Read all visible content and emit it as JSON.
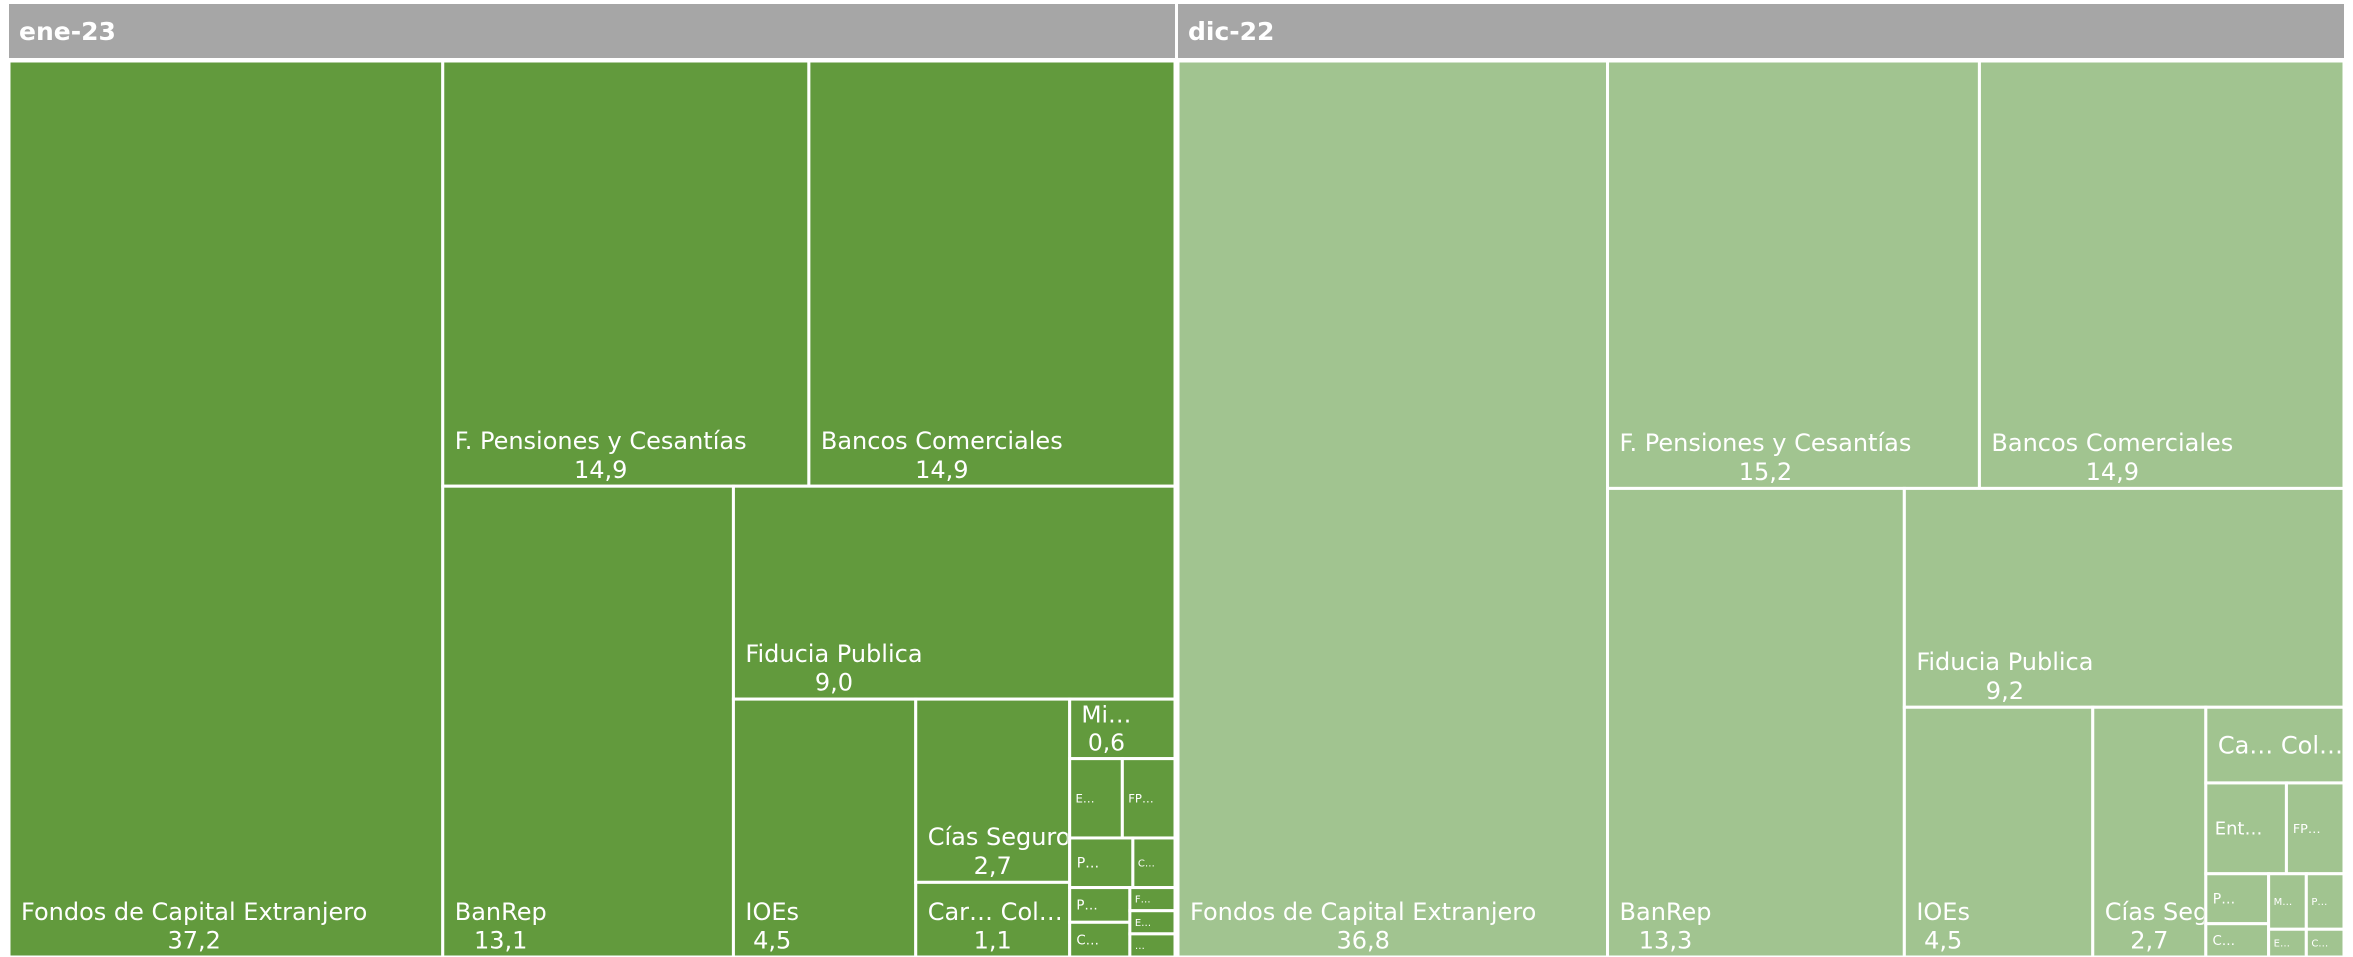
{
  "chart_data": {
    "type": "treemap",
    "groups": [
      {
        "name": "ene-23",
        "color": "#629a3d",
        "items": [
          {
            "name": "Fondos de Capital Extranjero",
            "value": 37.2,
            "value_label": "37,2"
          },
          {
            "name": "F. Pensiones y Cesantías",
            "value": 14.9,
            "value_label": "14,9"
          },
          {
            "name": "Bancos Comerciales",
            "value": 14.9,
            "value_label": "14,9"
          },
          {
            "name": "BanRep",
            "value": 13.1,
            "value_label": "13,1"
          },
          {
            "name": "Fiducia Publica",
            "value": 9.0,
            "value_label": "9,0"
          },
          {
            "name": "IOEs",
            "value": 4.5,
            "value_label": "4,5"
          },
          {
            "name": "Cías Seguros y Capitalizaci…",
            "value": 2.7,
            "value_label": "2,7"
          },
          {
            "name": "Car… Col… y F. Ad…",
            "value": 1.1,
            "value_label": "1,1"
          },
          {
            "name": "Mi…",
            "value": 0.6,
            "value_label": "0,6"
          },
          {
            "name": "E…",
            "value": 0.4
          },
          {
            "name": "FP…",
            "value": 0.4
          },
          {
            "name": "P…",
            "value": 0.3
          },
          {
            "name": "C…",
            "value": 0.2
          },
          {
            "name": "P…",
            "value": 0.2
          },
          {
            "name": "C…",
            "value": 0.2
          },
          {
            "name": "F…",
            "value": 0.1
          },
          {
            "name": "E…",
            "value": 0.1
          },
          {
            "name": "…",
            "value": 0.1
          }
        ]
      },
      {
        "name": "dic-22",
        "color": "#a1c490",
        "items": [
          {
            "name": "Fondos de Capital Extranjero",
            "value": 36.8,
            "value_label": "36,8"
          },
          {
            "name": "F. Pensiones y Cesantías",
            "value": 15.2,
            "value_label": "15,2"
          },
          {
            "name": "Bancos Comerciales",
            "value": 14.9,
            "value_label": "14,9"
          },
          {
            "name": "BanRep",
            "value": 13.3,
            "value_label": "13,3"
          },
          {
            "name": "Fiducia Publica",
            "value": 9.2,
            "value_label": "9,2"
          },
          {
            "name": "IOEs",
            "value": 4.5,
            "value_label": "4,5"
          },
          {
            "name": "Cías Seguros y Capitalizacio…",
            "value": 2.7,
            "value_label": "2,7"
          },
          {
            "name": "Ca… Col… y F. Ad…",
            "value": 1.0
          },
          {
            "name": "Ent…",
            "value": 0.7
          },
          {
            "name": "FP…",
            "value": 0.5
          },
          {
            "name": "P…",
            "value": 0.3
          },
          {
            "name": "C…",
            "value": 0.2
          },
          {
            "name": "M…",
            "value": 0.2
          },
          {
            "name": "P…",
            "value": 0.2
          },
          {
            "name": "E…",
            "value": 0.1
          },
          {
            "name": "C…",
            "value": 0.1
          }
        ]
      }
    ]
  }
}
